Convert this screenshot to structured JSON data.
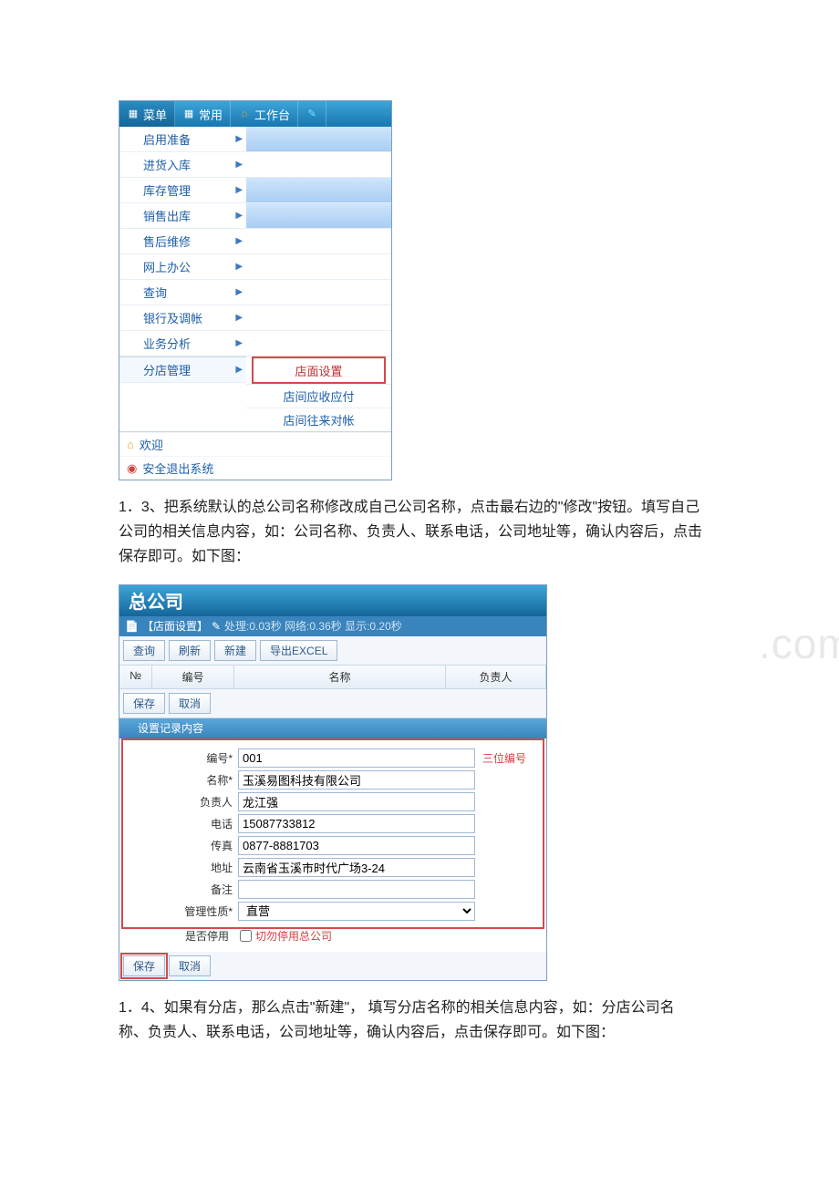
{
  "topbar": {
    "tabs": [
      {
        "label": "菜单",
        "icon": "grid-icon"
      },
      {
        "label": "常用",
        "icon": "grid-icon"
      },
      {
        "label": "工作台",
        "icon": "home-icon"
      },
      {
        "label": "",
        "icon": "edit-icon"
      }
    ]
  },
  "sidemenu": {
    "items": [
      {
        "label": "启用准备",
        "has_sub": true
      },
      {
        "label": "进货入库",
        "has_sub": true
      },
      {
        "label": "库存管理",
        "has_sub": true
      },
      {
        "label": "销售出库",
        "has_sub": true
      },
      {
        "label": "售后维修",
        "has_sub": true
      },
      {
        "label": "网上办公",
        "has_sub": true
      },
      {
        "label": "查询",
        "has_sub": true
      },
      {
        "label": "银行及调帐",
        "has_sub": true
      },
      {
        "label": "业务分析",
        "has_sub": true
      },
      {
        "label": "分店管理",
        "has_sub": true,
        "selected": true
      }
    ],
    "submenu": [
      {
        "label": "店面设置",
        "hot": true
      },
      {
        "label": "店间应收应付",
        "hot": false
      },
      {
        "label": "店间往来对帐",
        "hot": false
      }
    ],
    "bottom": [
      {
        "label": "欢迎",
        "icon": "home-icon"
      },
      {
        "label": "安全退出系统",
        "icon": "exit-icon"
      }
    ]
  },
  "para1": "1．3、把系统默认的总公司名称修改成自己公司名称，点击最右边的\"修改\"按钮。填写自己公司的相关信息内容，如：公司名称、负责人、联系电话，公司地址等，确认内容后，点击保存即可。如下图：",
  "shot2": {
    "title": "总公司",
    "crumb_label": "【店面设置】",
    "crumb_stats": "处理:0.03秒 网络:0.36秒  显示:0.20秒",
    "toolbar": {
      "query": "查询",
      "refresh": "刷新",
      "new": "新建",
      "export": "导出EXCEL"
    },
    "gridcols": {
      "no": "№",
      "code": "编号",
      "name": "名称",
      "owner": "负责人"
    },
    "toolbar2": {
      "save": "保存",
      "cancel": "取消"
    },
    "section": "设置记录内容",
    "fields": {
      "code_label": "编号*",
      "code_value": "001",
      "name_label": "名称*",
      "name_value": "玉溪易图科技有限公司",
      "owner_label": "负责人",
      "owner_value": "龙江强",
      "phone_label": "电话",
      "phone_value": "15087733812",
      "fax_label": "传真",
      "fax_value": "0877-8881703",
      "addr_label": "地址",
      "addr_value": "云南省玉溪市时代广场3-24",
      "note_label": "备注",
      "note_value": "",
      "type_label": "管理性质*",
      "type_value": "直营",
      "stop_label": "是否停用",
      "stop_tip": "切勿停用总公司"
    },
    "hint_code": "三位编号",
    "footer": {
      "save": "保存",
      "cancel": "取消"
    }
  },
  "para2": "1．4、如果有分店，那么点击\"新建\"， 填写分店名称的相关信息内容，如：分店公司名称、负责人、联系电话，公司地址等，确认内容后，点击保存即可。如下图：",
  "watermark": ".com.cn",
  "colors": {
    "topbar_grad_from": "#3ea4d8",
    "topbar_grad_to": "#1877b0",
    "red": "#d14b4b",
    "link": "#1d5ea9"
  }
}
